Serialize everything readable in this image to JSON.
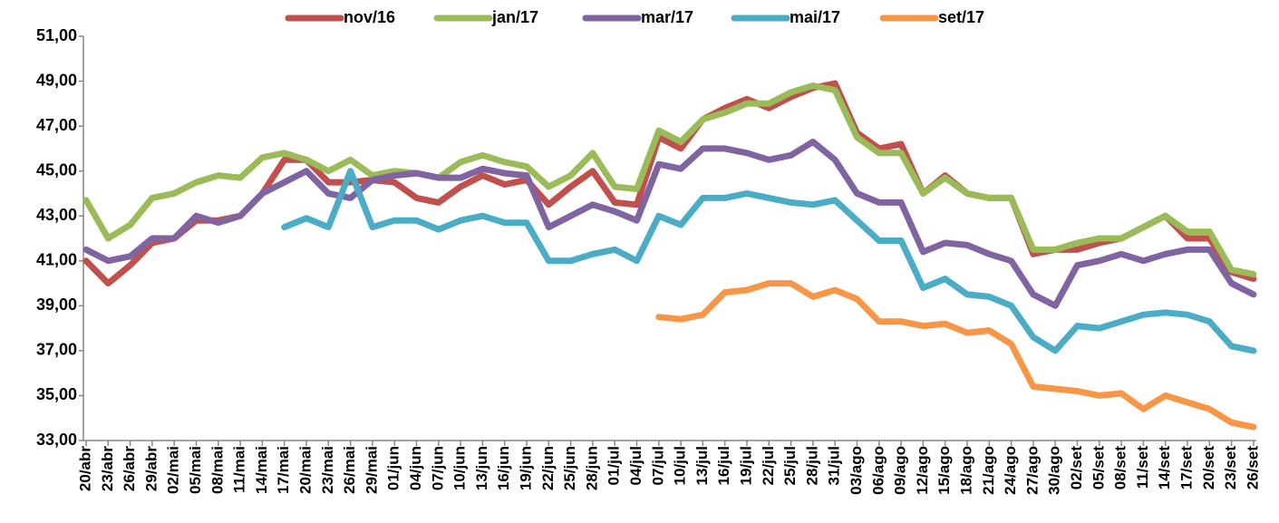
{
  "chart_data": {
    "type": "line",
    "categories": [
      "20/abr",
      "23/abr",
      "26/abr",
      "29/abr",
      "02/mai",
      "05/mai",
      "08/mai",
      "11/mai",
      "14/mai",
      "17/mai",
      "20/mai",
      "23/mai",
      "26/mai",
      "29/mai",
      "01/jun",
      "04/jun",
      "07/jun",
      "10/jun",
      "13/jun",
      "16/jun",
      "19/jun",
      "22/jun",
      "25/jun",
      "28/jun",
      "01/jul",
      "04/jul",
      "07/jul",
      "10/jul",
      "13/jul",
      "16/jul",
      "19/jul",
      "22/jul",
      "25/jul",
      "28/jul",
      "31/jul",
      "03/ago",
      "06/ago",
      "09/ago",
      "12/ago",
      "15/ago",
      "18/ago",
      "21/ago",
      "24/ago",
      "27/ago",
      "30/ago",
      "02/set",
      "05/set",
      "08/set",
      "11/set",
      "14/set",
      "17/set",
      "20/set",
      "23/set",
      "26/set"
    ],
    "series": [
      {
        "name": "nov/16",
        "color": "#c0504d",
        "values": [
          41.0,
          40.0,
          40.8,
          41.8,
          42.0,
          42.8,
          42.8,
          43.0,
          44.0,
          45.5,
          45.5,
          44.5,
          44.5,
          44.6,
          44.5,
          43.8,
          43.6,
          44.3,
          44.8,
          44.4,
          44.6,
          43.5,
          44.3,
          45.0,
          43.6,
          43.5,
          46.5,
          46.0,
          47.3,
          47.8,
          48.2,
          47.8,
          48.3,
          48.7,
          48.9,
          46.7,
          46.0,
          46.2,
          44.0,
          44.8,
          44.0,
          43.8,
          43.8,
          41.3,
          41.5,
          41.5,
          41.8,
          42.0,
          42.5,
          43.0,
          42.0,
          42.0,
          40.5,
          40.2
        ]
      },
      {
        "name": "jan/17",
        "color": "#9bbb59",
        "values": [
          43.7,
          42.0,
          42.6,
          43.8,
          44.0,
          44.5,
          44.8,
          44.7,
          45.6,
          45.8,
          45.5,
          45.0,
          45.5,
          44.8,
          45.0,
          44.9,
          44.7,
          45.4,
          45.7,
          45.4,
          45.2,
          44.3,
          44.8,
          45.8,
          44.3,
          44.2,
          46.8,
          46.3,
          47.3,
          47.6,
          48.0,
          48.0,
          48.5,
          48.8,
          48.6,
          46.5,
          45.8,
          45.8,
          44.0,
          44.7,
          44.0,
          43.8,
          43.8,
          41.5,
          41.5,
          41.8,
          42.0,
          42.0,
          42.5,
          43.0,
          42.3,
          42.3,
          40.6,
          40.4
        ]
      },
      {
        "name": "mar/17",
        "color": "#8064a2",
        "values": [
          41.5,
          41.0,
          41.2,
          42.0,
          42.0,
          43.0,
          42.7,
          43.0,
          44.0,
          44.5,
          45.0,
          44.0,
          43.8,
          44.6,
          44.8,
          44.9,
          44.7,
          44.7,
          45.1,
          44.9,
          44.8,
          42.5,
          43.0,
          43.5,
          43.2,
          42.8,
          45.3,
          45.1,
          46.0,
          46.0,
          45.8,
          45.5,
          45.7,
          46.3,
          45.5,
          44.0,
          43.6,
          43.6,
          41.4,
          41.8,
          41.7,
          41.3,
          41.0,
          39.5,
          39.0,
          40.8,
          41.0,
          41.3,
          41.0,
          41.3,
          41.5,
          41.5,
          40.0,
          39.5
        ]
      },
      {
        "name": "mai/17",
        "color": "#4bacc6",
        "values": [
          null,
          null,
          null,
          null,
          null,
          null,
          null,
          null,
          null,
          42.5,
          42.9,
          42.5,
          45.0,
          42.5,
          42.8,
          42.8,
          42.4,
          42.8,
          43.0,
          42.7,
          42.7,
          41.0,
          41.0,
          41.3,
          41.5,
          41.0,
          43.0,
          42.6,
          43.8,
          43.8,
          44.0,
          43.8,
          43.6,
          43.5,
          43.7,
          42.8,
          41.9,
          41.9,
          39.8,
          40.2,
          39.5,
          39.4,
          39.0,
          37.6,
          37.0,
          38.1,
          38.0,
          38.3,
          38.6,
          38.7,
          38.6,
          38.3,
          37.2,
          37.0
        ]
      },
      {
        "name": "set/17",
        "color": "#f79646",
        "values": [
          null,
          null,
          null,
          null,
          null,
          null,
          null,
          null,
          null,
          null,
          null,
          null,
          null,
          null,
          null,
          null,
          null,
          null,
          null,
          null,
          null,
          null,
          null,
          null,
          null,
          null,
          38.5,
          38.4,
          38.6,
          39.6,
          39.7,
          40.0,
          40.0,
          39.4,
          39.7,
          39.3,
          38.3,
          38.3,
          38.1,
          38.2,
          37.8,
          37.9,
          37.3,
          35.4,
          35.3,
          35.2,
          35.0,
          35.1,
          34.4,
          35.0,
          34.7,
          34.4,
          33.8,
          33.6
        ]
      }
    ],
    "ylim": [
      33,
      51
    ],
    "yticks": [
      {
        "value": 33,
        "label": "33,00"
      },
      {
        "value": 35,
        "label": "35,00"
      },
      {
        "value": 37,
        "label": "37,00"
      },
      {
        "value": 39,
        "label": "39,00"
      },
      {
        "value": 41,
        "label": "41,00"
      },
      {
        "value": 43,
        "label": "43,00"
      },
      {
        "value": 45,
        "label": "45,00"
      },
      {
        "value": 47,
        "label": "47,00"
      },
      {
        "value": 49,
        "label": "49,00"
      },
      {
        "value": 51,
        "label": "51,00"
      }
    ],
    "legend": "top"
  }
}
